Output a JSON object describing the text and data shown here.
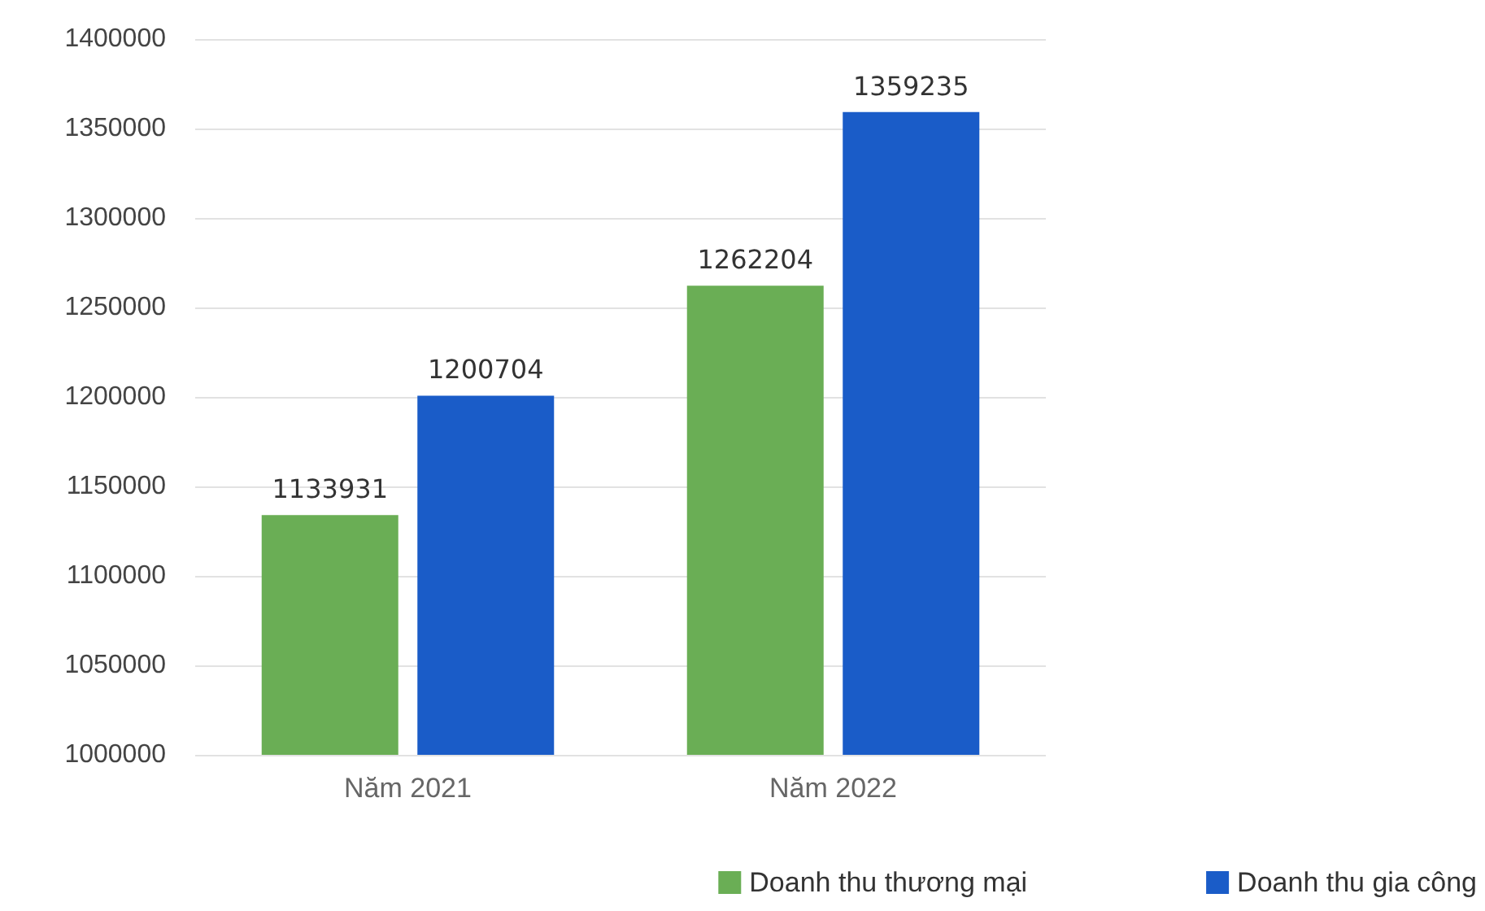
{
  "chart_data": {
    "type": "bar",
    "categories": [
      "Năm 2021",
      "Năm 2022"
    ],
    "series": [
      {
        "name": "Doanh thu thương mại",
        "color": "#6aae55",
        "values": [
          1133931,
          1262204
        ]
      },
      {
        "name": "Doanh thu gia công",
        "color": "#1a5cc8",
        "values": [
          1200704,
          1359235
        ]
      }
    ],
    "ylim": [
      1000000,
      1400000
    ],
    "yticks": [
      1000000,
      1050000,
      1100000,
      1150000,
      1200000,
      1250000,
      1300000,
      1350000,
      1400000
    ],
    "grid": "y",
    "legend": "bottom right",
    "data_labels": true
  }
}
